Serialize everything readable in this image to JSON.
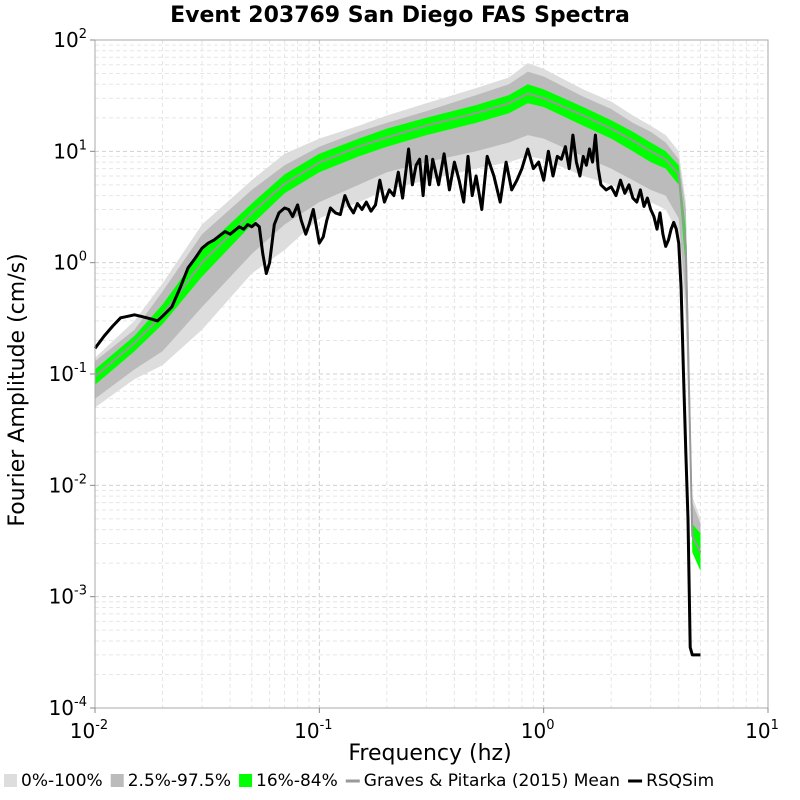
{
  "chart_data": {
    "type": "line",
    "title": "Event 203769 San Diego FAS Spectra",
    "xlabel": "Frequency (hz)",
    "ylabel": "Fourier Amplitude (cm/s)",
    "x_scale": "log",
    "y_scale": "log",
    "xlim": [
      0.01,
      10
    ],
    "ylim": [
      0.0001,
      100
    ],
    "x_ticks": [
      {
        "base": "10",
        "exp": "-2",
        "value": 0.01
      },
      {
        "base": "10",
        "exp": "-1",
        "value": 0.1
      },
      {
        "base": "10",
        "exp": "0",
        "value": 1
      },
      {
        "base": "10",
        "exp": "1",
        "value": 10
      }
    ],
    "y_ticks": [
      {
        "base": "10",
        "exp": "-4",
        "value": 0.0001
      },
      {
        "base": "10",
        "exp": "-3",
        "value": 0.001
      },
      {
        "base": "10",
        "exp": "-2",
        "value": 0.01
      },
      {
        "base": "10",
        "exp": "-1",
        "value": 0.1
      },
      {
        "base": "10",
        "exp": "0",
        "value": 1
      },
      {
        "base": "10",
        "exp": "1",
        "value": 10
      },
      {
        "base": "10",
        "exp": "2",
        "value": 100
      }
    ],
    "grid": true,
    "legend_placement": "bottom",
    "x": [
      0.01,
      0.015,
      0.02,
      0.03,
      0.05,
      0.07,
      0.1,
      0.15,
      0.2,
      0.3,
      0.5,
      0.7,
      0.85,
      1.0,
      1.5,
      2.0,
      2.5,
      3.0,
      3.5,
      4.0,
      4.3,
      4.6,
      5.0
    ],
    "bands": [
      {
        "name": "0%-100%",
        "color": "#dddddd",
        "lower": [
          0.05,
          0.09,
          0.12,
          0.25,
          0.8,
          1.3,
          2.5,
          3.5,
          4.5,
          5.5,
          7,
          8,
          9,
          8.5,
          6,
          5,
          4,
          3.5,
          3,
          1.8,
          0.3,
          0.0035,
          0.002
        ],
        "upper": [
          0.14,
          0.3,
          0.65,
          2.2,
          5.5,
          9.5,
          13,
          17,
          21,
          27,
          37,
          46,
          62,
          55,
          36,
          28,
          21,
          17,
          14,
          10,
          3.5,
          0.008,
          0.005
        ]
      },
      {
        "name": "2.5%-97.5%",
        "color": "#bbbbbb",
        "lower": [
          0.06,
          0.11,
          0.16,
          0.4,
          1.2,
          2.2,
          3.5,
          5,
          6.5,
          8,
          10,
          12,
          14,
          13,
          9,
          7,
          5.5,
          4.5,
          4,
          2.5,
          0.45,
          0.0035,
          0.002
        ],
        "upper": [
          0.13,
          0.25,
          0.55,
          1.8,
          4.5,
          7.5,
          11,
          15,
          18,
          23,
          32,
          40,
          52,
          47,
          31,
          24,
          18,
          15,
          12,
          8.5,
          3,
          0.007,
          0.0045
        ]
      },
      {
        "name": "16%-84%",
        "color": "#00ff00",
        "lower": [
          0.08,
          0.16,
          0.28,
          0.75,
          2.2,
          4.2,
          6.5,
          9,
          11,
          14,
          18,
          22,
          27,
          25,
          17,
          13,
          10,
          8,
          7,
          5,
          0.9,
          0.0025,
          0.0017
        ],
        "upper": [
          0.11,
          0.22,
          0.42,
          1.3,
          3.4,
          6.2,
          9.5,
          13,
          16,
          20,
          26,
          32,
          40,
          36,
          25,
          19,
          15,
          12,
          10,
          7.5,
          2,
          0.0045,
          0.0037
        ]
      }
    ],
    "series": [
      {
        "name": "Graves & Pitarka (2015) Mean",
        "color": "#999999",
        "values": [
          0.095,
          0.19,
          0.34,
          1.0,
          2.8,
          5.1,
          7.9,
          11,
          13.3,
          17,
          22,
          27,
          33,
          30,
          21,
          16,
          12.5,
          10,
          8.5,
          6.2,
          1.4,
          0.0035,
          0.0025
        ]
      },
      {
        "name": "RSQSim",
        "color": "#000000",
        "x": [
          0.01,
          0.011,
          0.012,
          0.013,
          0.014,
          0.015,
          0.016,
          0.017,
          0.018,
          0.019,
          0.02,
          0.022,
          0.024,
          0.026,
          0.028,
          0.03,
          0.032,
          0.034,
          0.036,
          0.038,
          0.04,
          0.042,
          0.044,
          0.046,
          0.048,
          0.05,
          0.052,
          0.054,
          0.056,
          0.058,
          0.06,
          0.063,
          0.066,
          0.07,
          0.073,
          0.076,
          0.08,
          0.083,
          0.087,
          0.09,
          0.094,
          0.1,
          0.104,
          0.108,
          0.112,
          0.118,
          0.124,
          0.13,
          0.136,
          0.142,
          0.148,
          0.155,
          0.162,
          0.17,
          0.178,
          0.186,
          0.195,
          0.205,
          0.215,
          0.225,
          0.235,
          0.25,
          0.26,
          0.27,
          0.28,
          0.29,
          0.3,
          0.31,
          0.32,
          0.34,
          0.36,
          0.38,
          0.4,
          0.42,
          0.44,
          0.46,
          0.48,
          0.5,
          0.53,
          0.56,
          0.6,
          0.64,
          0.68,
          0.72,
          0.76,
          0.8,
          0.85,
          0.9,
          0.95,
          1.0,
          1.05,
          1.1,
          1.15,
          1.2,
          1.25,
          1.3,
          1.35,
          1.4,
          1.45,
          1.5,
          1.55,
          1.6,
          1.65,
          1.7,
          1.75,
          1.8,
          1.9,
          2.0,
          2.1,
          2.2,
          2.3,
          2.4,
          2.5,
          2.6,
          2.7,
          2.8,
          2.9,
          3.0,
          3.1,
          3.2,
          3.3,
          3.4,
          3.5,
          3.6,
          3.7,
          3.8,
          3.9,
          4.0,
          4.1,
          4.2,
          4.3,
          4.4,
          4.5,
          4.6,
          4.7,
          4.8,
          4.9,
          5.0
        ],
        "values": [
          0.17,
          0.22,
          0.27,
          0.32,
          0.33,
          0.34,
          0.33,
          0.32,
          0.31,
          0.3,
          0.33,
          0.4,
          0.6,
          0.9,
          1.1,
          1.35,
          1.5,
          1.6,
          1.75,
          1.9,
          1.8,
          1.95,
          2.1,
          2.0,
          2.2,
          2.1,
          2.25,
          2.1,
          1.2,
          0.8,
          1.0,
          2.2,
          2.8,
          3.1,
          3.0,
          2.6,
          3.3,
          2.4,
          1.8,
          2.2,
          3.0,
          1.5,
          1.7,
          2.4,
          3.1,
          2.8,
          2.7,
          4.0,
          3.2,
          2.8,
          3.4,
          3.0,
          3.5,
          2.9,
          3.3,
          5.5,
          3.5,
          4.5,
          4.0,
          6.5,
          3.8,
          10.5,
          5.0,
          7.5,
          8.5,
          4.0,
          9.0,
          5.0,
          8.5,
          5.0,
          9.5,
          4.5,
          8.0,
          5.5,
          3.5,
          9.0,
          4.0,
          6.0,
          3.0,
          9.0,
          6.0,
          3.5,
          8.0,
          4.5,
          5.5,
          7.0,
          10.5,
          7.0,
          8.0,
          5.5,
          10.0,
          6.0,
          9.0,
          8.5,
          11.0,
          7.0,
          14.0,
          8.0,
          6.0,
          9.0,
          7.5,
          10.5,
          8.0,
          14.0,
          7.0,
          5.0,
          4.5,
          4.8,
          4.0,
          5.5,
          4.2,
          5.0,
          3.8,
          3.5,
          4.5,
          3.2,
          3.8,
          3.0,
          2.6,
          2.0,
          2.8,
          1.8,
          1.4,
          1.6,
          2.0,
          2.3,
          2.0,
          1.5,
          0.6,
          0.1,
          0.02,
          0.005,
          0.00035,
          0.0003,
          0.0003,
          0.0003,
          0.0003,
          0.0003
        ]
      }
    ],
    "legend": [
      {
        "label": "0%-100%",
        "kind": "box",
        "color": "#dddddd"
      },
      {
        "label": "2.5%-97.5%",
        "kind": "box",
        "color": "#bbbbbb"
      },
      {
        "label": "16%-84%",
        "kind": "box",
        "color": "#00ff00"
      },
      {
        "label": "Graves & Pitarka (2015) Mean",
        "kind": "line",
        "color": "#999999"
      },
      {
        "label": "RSQSim",
        "kind": "line",
        "color": "#000000"
      }
    ]
  }
}
